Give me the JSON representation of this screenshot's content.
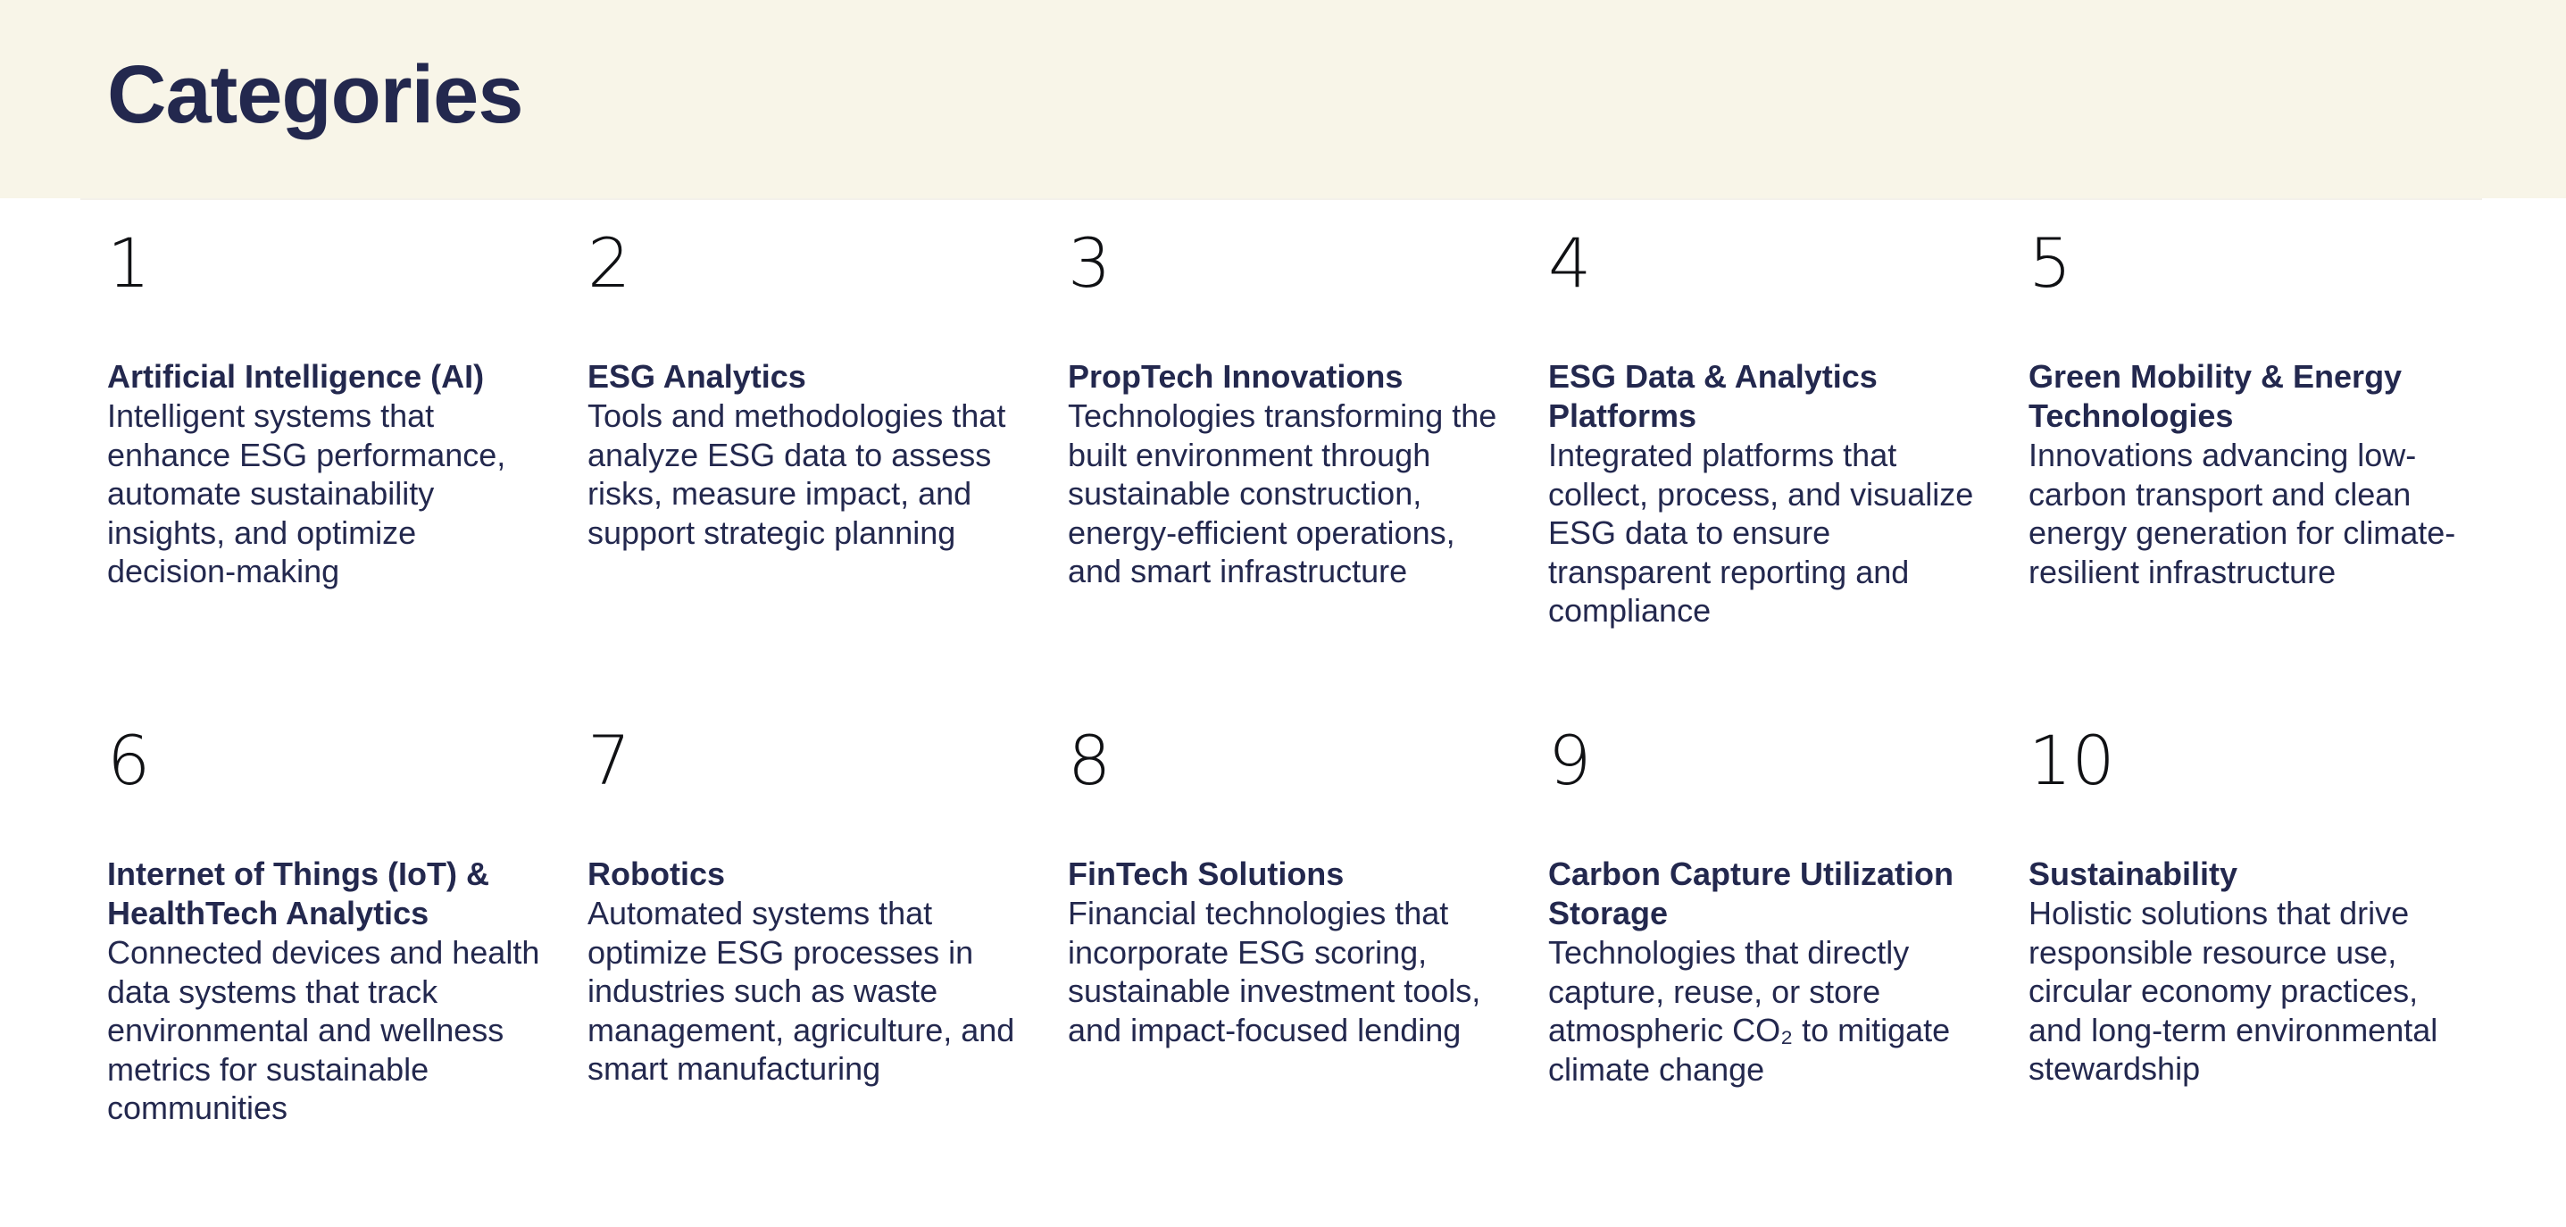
{
  "page": {
    "title": "Categories"
  },
  "colors": {
    "header_background": "#f8f5e8",
    "text_primary": "#23284e",
    "number_text": "#101114",
    "page_background": "#ffffff"
  },
  "categories": [
    {
      "number": "1",
      "title": "Artificial Intelligence (AI)",
      "description": "Intelligent systems that enhance ESG performance, automate sustainability insights, and optimize decision-making"
    },
    {
      "number": "2",
      "title": "ESG Analytics",
      "description": "Tools and methodologies that analyze ESG data to assess risks, measure impact, and support strategic planning"
    },
    {
      "number": "3",
      "title": "PropTech Innovations",
      "description": "Technologies transforming the built environment through sustainable construction, energy-efficient operations, and smart infrastructure"
    },
    {
      "number": "4",
      "title": "ESG Data & Analytics Platforms",
      "description": "Integrated platforms that collect, process, and visualize ESG data to ensure transparent reporting and compliance"
    },
    {
      "number": "5",
      "title": "Green Mobility & Energy Technologies",
      "description": "Innovations advancing low-carbon transport and clean energy generation for climate-resilient infrastructure"
    },
    {
      "number": "6",
      "title": "Internet of Things (IoT) & HealthTech Analytics",
      "description": "Connected devices and health data systems that track environmental and wellness metrics for sustainable communities"
    },
    {
      "number": "7",
      "title": "Robotics",
      "description": "Automated systems that optimize ESG processes in industries such as waste management, agriculture, and smart manufacturing"
    },
    {
      "number": "8",
      "title": "FinTech Solutions",
      "description": "Financial technologies that incorporate ESG scoring, sustainable investment tools, and impact-focused lending"
    },
    {
      "number": "9",
      "title": "Carbon Capture Utilization Storage",
      "description": "Technologies that directly capture, reuse, or store atmospheric CO₂ to mitigate climate change"
    },
    {
      "number": "10",
      "title": "Sustainability",
      "description": "Holistic solutions that drive responsible resource use, circular economy practices, and long-term environmental stewardship"
    }
  ]
}
